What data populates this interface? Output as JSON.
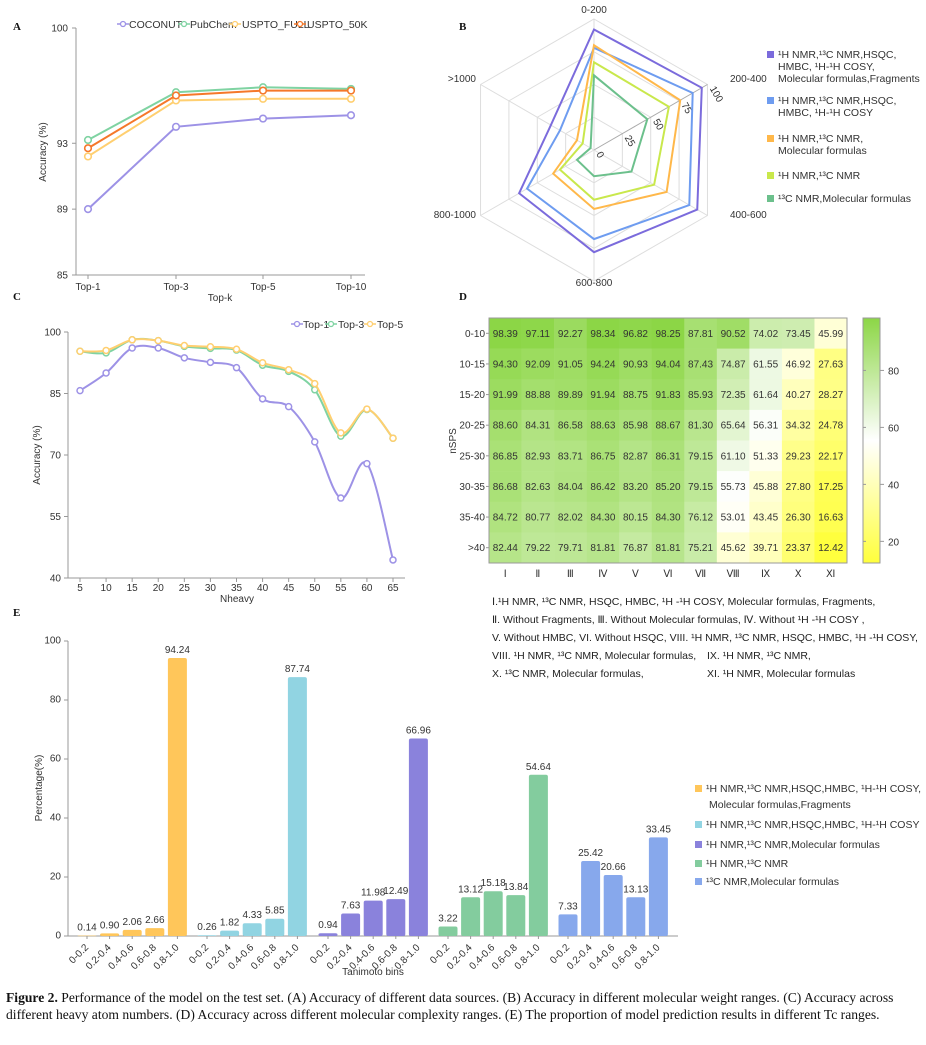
{
  "panel_labels": {
    "a": "A",
    "b": "B",
    "c": "C",
    "d": "D",
    "e": "E"
  },
  "chart_data": [
    {
      "panel": "A",
      "type": "line",
      "xlabel": "Top-k",
      "ylabel": "Accuracy (%)",
      "categories": [
        "Top-1",
        "Top-3",
        "Top-5",
        "Top-10"
      ],
      "yticks": [
        85,
        89,
        93,
        100
      ],
      "ylim": [
        85,
        100
      ],
      "legend": "top",
      "series": [
        {
          "name": "COCONUT",
          "color": "#9d92e6",
          "values": [
            89.0,
            94.0,
            94.5,
            94.7
          ]
        },
        {
          "name": "PubChem",
          "color": "#7fd3a2",
          "values": [
            93.2,
            96.1,
            96.4,
            96.3
          ]
        },
        {
          "name": "USPTO_FULL",
          "color": "#ffcf70",
          "values": [
            92.2,
            95.6,
            95.7,
            95.7
          ]
        },
        {
          "name": "USPTO_50K",
          "color": "#f5782a",
          "values": [
            92.7,
            95.9,
            96.2,
            96.2
          ]
        }
      ]
    },
    {
      "panel": "B",
      "type": "radar",
      "axes": [
        "0-200",
        "200-400",
        "400-600",
        "600-800",
        "800-1000",
        ">1000"
      ],
      "rticks": [
        0,
        25,
        50,
        75,
        100
      ],
      "rlim": [
        0,
        100
      ],
      "legend": "right",
      "series": [
        {
          "name_lines": [
            "¹H NMR,¹³C NMR,HSQC,",
            "HMBC, ¹H-¹H COSY,",
            "Molecular formulas,Fragments"
          ],
          "color": "#7b6bdc",
          "values": [
            92,
            95,
            91,
            78,
            66,
            38
          ]
        },
        {
          "name_lines": [
            "¹H NMR,¹³C NMR,HSQC,",
            "HMBC, ¹H-¹H COSY"
          ],
          "color": "#6e9cf0",
          "values": [
            78,
            87,
            84,
            68,
            59,
            30
          ]
        },
        {
          "name_lines": [
            "¹H NMR,¹³C NMR,",
            "Molecular formulas"
          ],
          "color": "#ffb84a",
          "values": [
            80,
            76,
            64,
            45,
            36,
            15
          ]
        },
        {
          "name_lines": [
            "¹H NMR,¹³C NMR"
          ],
          "color": "#c9e84c",
          "values": [
            67,
            66,
            53,
            38,
            30,
            10
          ]
        },
        {
          "name_lines": [
            "¹³C NMR,Molecular formulas"
          ],
          "color": "#6cc08c",
          "values": [
            57,
            47,
            33,
            20,
            15,
            3
          ]
        }
      ]
    },
    {
      "panel": "C",
      "type": "line",
      "xlabel": "Nheavy",
      "ylabel": "Accuracy (%)",
      "x": [
        5,
        10,
        15,
        20,
        25,
        30,
        35,
        40,
        45,
        50,
        55,
        60,
        65
      ],
      "yticks": [
        40,
        55,
        70,
        85,
        100
      ],
      "ylim": [
        40,
        100
      ],
      "legend": "top-right",
      "series": [
        {
          "name": "Top-1",
          "color": "#9d92e6",
          "values": [
            85.7,
            90.0,
            96.1,
            96.1,
            93.7,
            92.6,
            91.3,
            83.7,
            81.8,
            73.2,
            59.5,
            67.9,
            44.4
          ]
        },
        {
          "name": "Top-3",
          "color": "#7fd3a2",
          "values": [
            95.3,
            94.9,
            98.1,
            97.9,
            96.5,
            96.0,
            95.6,
            91.9,
            90.4,
            85.9,
            74.6,
            81.1,
            74.1
          ]
        },
        {
          "name": "Top-5",
          "color": "#ffcf70",
          "values": [
            95.3,
            95.5,
            98.1,
            97.9,
            96.7,
            96.4,
            95.8,
            92.5,
            90.8,
            87.4,
            75.4,
            81.2,
            74.1
          ]
        }
      ]
    },
    {
      "panel": "D",
      "type": "heatmap",
      "ylabel": "nSPS",
      "columns": [
        "Ⅰ",
        "Ⅱ",
        "Ⅲ",
        "Ⅳ",
        "Ⅴ",
        "Ⅵ",
        "Ⅶ",
        "Ⅷ",
        "Ⅸ",
        "Ⅹ",
        "Ⅺ"
      ],
      "rows": [
        "0-10",
        "10-15",
        "15-20",
        "20-25",
        "25-30",
        "30-35",
        "35-40",
        ">40"
      ],
      "values": [
        [
          "98.39",
          "97.11",
          "92.27",
          "98.34",
          "96.82",
          "98.25",
          "87.81",
          "90.52",
          "74.02",
          "73.45",
          "45.99"
        ],
        [
          "94.30",
          "92.09",
          "91.05",
          "94.24",
          "90.93",
          "94.04",
          "87.43",
          "74.87",
          "61.55",
          "46.92",
          "27.63"
        ],
        [
          "91.99",
          "88.88",
          "89.89",
          "91.94",
          "88.75",
          "91.83",
          "85.93",
          "72.35",
          "61.64",
          "40.27",
          "28.27"
        ],
        [
          "88.60",
          "84.31",
          "86.58",
          "88.63",
          "85.98",
          "88.67",
          "81.30",
          "65.64",
          "56.31",
          "34.32",
          "24.78"
        ],
        [
          "86.85",
          "82.93",
          "83.71",
          "86.75",
          "82.87",
          "86.31",
          "79.15",
          "61.10",
          "51.33",
          "29.23",
          "22.17"
        ],
        [
          "86.68",
          "82.63",
          "84.04",
          "86.42",
          "83.20",
          "85.20",
          "79.15",
          "55.73",
          "45.88",
          "27.80",
          "17.25"
        ],
        [
          "84.72",
          "80.77",
          "82.02",
          "84.30",
          "80.15",
          "84.30",
          "76.12",
          "53.01",
          "43.45",
          "26.30",
          "16.63"
        ],
        [
          "82.44",
          "79.22",
          "79.71",
          "81.81",
          "76.87",
          "81.81",
          "75.21",
          "45.62",
          "39.71",
          "23.37",
          "12.42"
        ]
      ],
      "colorbar_ticks": [
        20,
        40,
        60,
        80
      ],
      "color_low": "#ffff3c",
      "color_mid": "#ffffff",
      "color_high": "#8cd646",
      "legend_lines": [
        {
          "left": "Ⅰ.¹H NMR, ¹³C NMR, HSQC, HMBC, ¹H -¹H COSY, Molecular formulas, Fragments,",
          "right": ""
        },
        {
          "left": "Ⅱ. Without Fragments, Ⅲ. Without Molecular formulas, Ⅳ. Without ¹H -¹H COSY ,",
          "right": ""
        },
        {
          "left": "V. Without HMBC, VI. Without HSQC, VIII. ¹H NMR, ¹³C NMR, HSQC, HMBC, ¹H -¹H COSY,",
          "right": ""
        },
        {
          "left": "VIII. ¹H NMR, ¹³C NMR, Molecular formulas,",
          "right": "IX. ¹H NMR, ¹³C NMR,"
        },
        {
          "left": "X. ¹³C NMR, Molecular formulas,",
          "right": "XI. ¹H NMR, Molecular formulas"
        }
      ]
    },
    {
      "panel": "E",
      "type": "bar",
      "xlabel": "Tanimoto bins",
      "ylabel": "Percentage(%)",
      "categories": [
        "0-0.2",
        "0.2-0.4",
        "0.4-0.6",
        "0.6-0.8",
        "0.8-1.0"
      ],
      "yticks": [
        0,
        20,
        40,
        60,
        80,
        100
      ],
      "ylim": [
        0,
        100
      ],
      "legend": "right",
      "series": [
        {
          "name_lines": [
            "¹H NMR,¹³C NMR,HSQC,HMBC, ¹H-¹H COSY,",
            "Molecular formulas,Fragments"
          ],
          "color": "#ffc65a",
          "values": [
            0.14,
            0.9,
            2.06,
            2.66,
            94.24
          ],
          "labels": [
            "0.14",
            "0.90",
            "2.06",
            "2.66",
            "94.24"
          ]
        },
        {
          "name_lines": [
            "¹H NMR,¹³C NMR,HSQC,HMBC, ¹H-¹H COSY"
          ],
          "color": "#91d4e2",
          "values": [
            0.26,
            1.82,
            4.33,
            5.85,
            87.74
          ],
          "labels": [
            "0.26",
            "1.82",
            "4.33",
            "5.85",
            "87.74"
          ]
        },
        {
          "name_lines": [
            "¹H NMR,¹³C NMR,Molecular formulas"
          ],
          "color": "#8a82dc",
          "values": [
            0.94,
            7.63,
            11.98,
            12.49,
            66.96
          ],
          "labels": [
            "0.94",
            "7.63",
            "11.98",
            "12.49",
            "66.96"
          ]
        },
        {
          "name_lines": [
            "¹H NMR,¹³C NMR"
          ],
          "color": "#83cc9e",
          "values": [
            3.22,
            13.12,
            15.18,
            13.84,
            54.64
          ],
          "labels": [
            "3.22",
            "13.12",
            "15.18",
            "13.84",
            "54.64"
          ]
        },
        {
          "name_lines": [
            "¹³C NMR,Molecular formulas"
          ],
          "color": "#87a8ec",
          "values": [
            7.33,
            25.42,
            20.66,
            13.13,
            33.45
          ],
          "labels": [
            "7.33",
            "25.42",
            "20.66",
            "13.13",
            "33.45"
          ]
        }
      ]
    }
  ],
  "caption": {
    "label": "Figure 2.",
    "text": " Performance of the model on the test set. (A) Accuracy of different data sources. (B) Accuracy in different molecular weight ranges. (C) Accuracy across different heavy atom numbers. (D) Accuracy across different molecular complexity ranges. (E) The proportion of model prediction results in different Tc ranges."
  }
}
